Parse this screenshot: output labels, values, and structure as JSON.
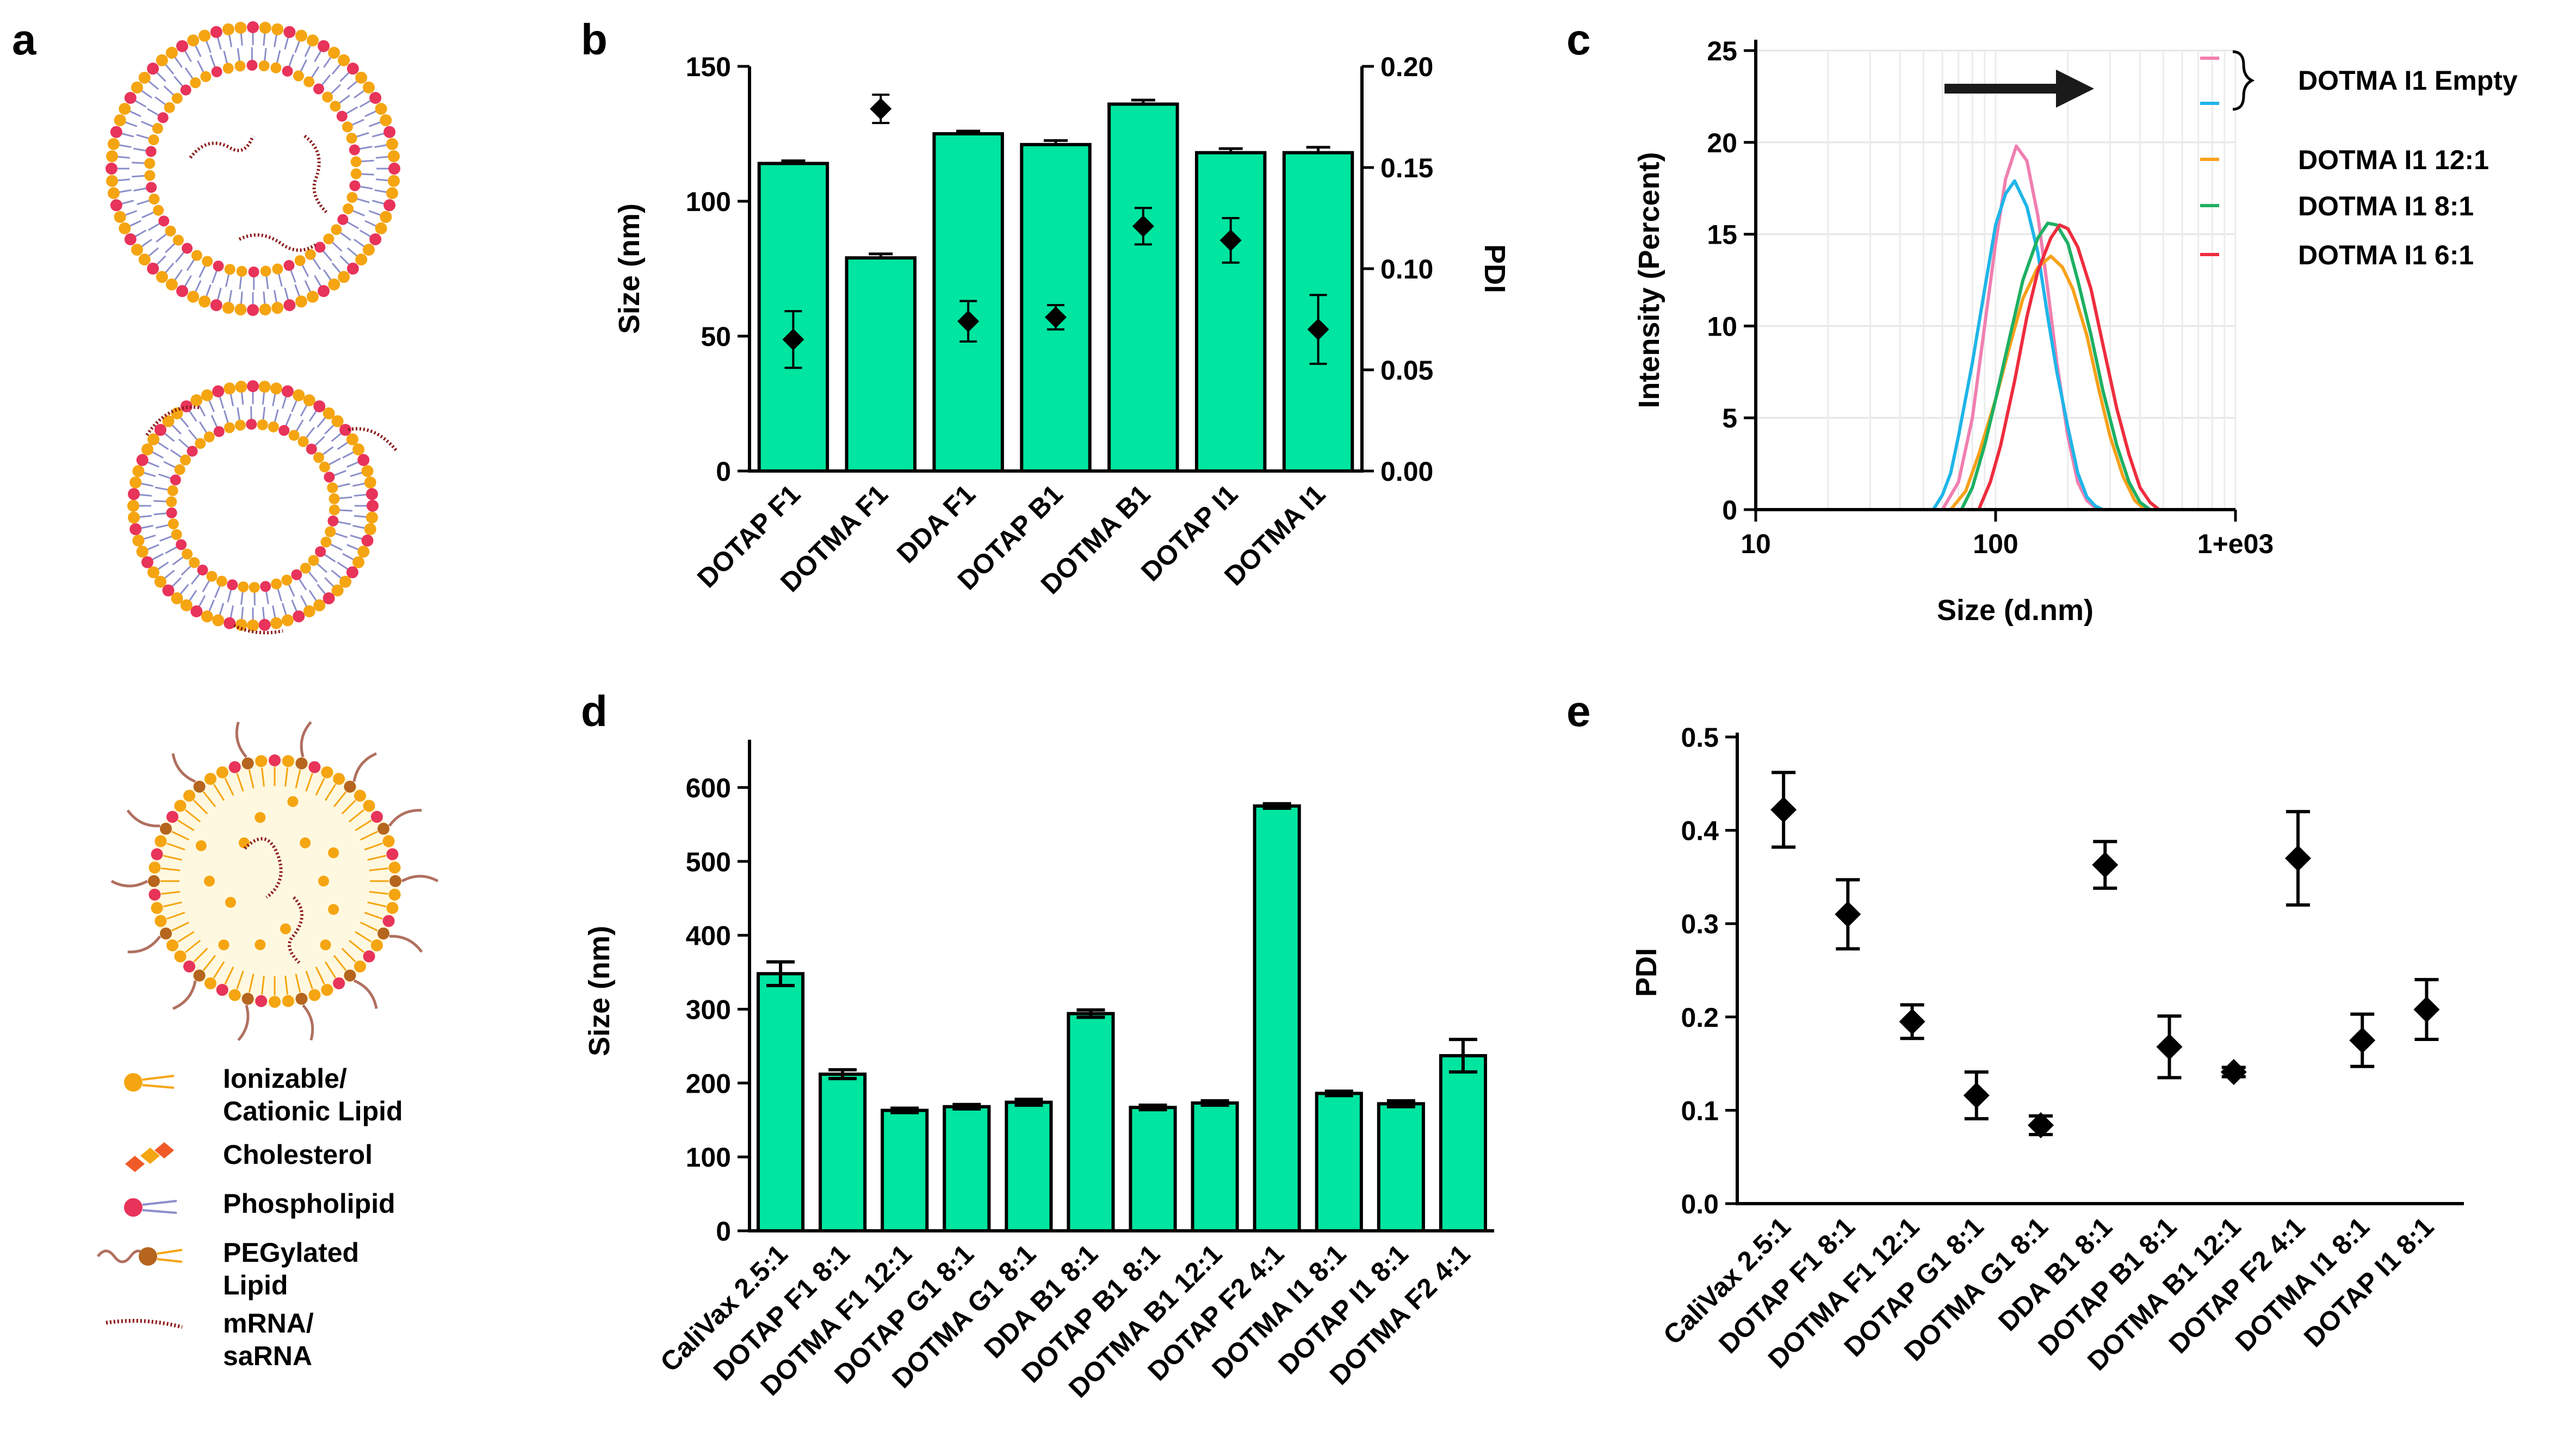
{
  "panels": {
    "a": "a",
    "b": "b",
    "c": "c",
    "d": "d",
    "e": "e"
  },
  "legend_a": {
    "items": [
      {
        "label": "Ionizable/\nCationic Lipid",
        "icon": "ionizable-lipid-icon"
      },
      {
        "label": "Cholesterol",
        "icon": "cholesterol-icon"
      },
      {
        "label": "Phospholipid",
        "icon": "phospholipid-icon"
      },
      {
        "label": "PEGylated\nLipid",
        "icon": "pegylated-lipid-icon"
      },
      {
        "label": "mRNA/\nsaRNA",
        "icon": "mrna-icon"
      }
    ]
  },
  "colors": {
    "bar": "#00E5A0",
    "lipid_head": "#F5A511",
    "phospho_head": "#E8335A",
    "cholesterol": "#F05A28",
    "tail": "#8C8FC9",
    "rna": "#8B1A1A",
    "peg": "#B07060",
    "peg_head": "#B5651D",
    "core": "#FFF8E0"
  },
  "chart_data": [
    {
      "id": "b",
      "type": "bar",
      "categories": [
        "DOTAP F1",
        "DOTMA F1",
        "DDA F1",
        "DOTAP B1",
        "DOTMA B1",
        "DOTAP I1",
        "DOTMA I1"
      ],
      "series": [
        {
          "name": "Size (nm)",
          "axis": "left",
          "values": [
            114,
            79,
            125,
            121,
            136,
            118,
            118
          ],
          "errors": [
            1,
            1.5,
            1,
            1.5,
            1.5,
            1.5,
            2
          ]
        },
        {
          "name": "PDI",
          "axis": "right",
          "type": "scatter",
          "values": [
            0.065,
            0.179,
            0.074,
            0.076,
            0.121,
            0.114,
            0.07
          ],
          "errors": [
            0.014,
            0.007,
            0.01,
            0.006,
            0.009,
            0.011,
            0.017
          ]
        }
      ],
      "ylabel": "Size (nm)",
      "y2label": "PDI",
      "ylim": [
        0,
        150
      ],
      "y2lim": [
        0,
        0.2
      ],
      "yticks": [
        "0",
        "50",
        "100",
        "150"
      ],
      "y2ticks": [
        "0.00",
        "0.05",
        "0.10",
        "0.15",
        "0.20"
      ]
    },
    {
      "id": "c",
      "type": "line",
      "xscale": "log",
      "xlabel": "Size (d.nm)",
      "ylabel": "Intensity (Percent)",
      "xlim": [
        10,
        1000
      ],
      "ylim": [
        0,
        25
      ],
      "xticks": [
        "10",
        "100",
        "1+e03"
      ],
      "yticks": [
        "0",
        "5",
        "10",
        "15",
        "20",
        "25"
      ],
      "grid": true,
      "legend_group_label": "DOTMA I1 Empty",
      "series": [
        {
          "name": "DOTMA I1 Empty",
          "color": "#F07FB0",
          "x": [
            60,
            70,
            80,
            90,
            100,
            110,
            122,
            135,
            150,
            165,
            180,
            200,
            220,
            240,
            260,
            280
          ],
          "y": [
            0,
            1.5,
            5,
            10,
            14.5,
            18,
            19.8,
            19,
            16,
            12,
            8,
            4,
            1.5,
            0.5,
            0.1,
            0
          ]
        },
        {
          "name": "DOTMA I1 Empty",
          "color": "#1FB5E8",
          "x": [
            55,
            60,
            65,
            70,
            80,
            90,
            100,
            110,
            120,
            135,
            150,
            165,
            180,
            200,
            220,
            240,
            260,
            280
          ],
          "y": [
            0,
            0.8,
            2,
            4,
            8,
            12,
            15.5,
            17.2,
            17.9,
            16.5,
            14,
            10.5,
            7.5,
            4.5,
            2,
            0.7,
            0.2,
            0
          ]
        },
        {
          "name": "DOTMA I1 12:1",
          "color": "#F7A11A",
          "x": [
            65,
            75,
            85,
            100,
            115,
            130,
            150,
            170,
            190,
            210,
            240,
            270,
            300,
            340,
            380,
            420
          ],
          "y": [
            0,
            1,
            3,
            6,
            9,
            11.5,
            13.2,
            13.8,
            13.2,
            12,
            9.5,
            6.5,
            4,
            1.8,
            0.5,
            0
          ]
        },
        {
          "name": "DOTMA I1 8:1",
          "color": "#1DB063",
          "x": [
            72,
            80,
            90,
            100,
            115,
            130,
            150,
            165,
            180,
            200,
            220,
            250,
            280,
            320,
            360,
            400,
            440
          ],
          "y": [
            0,
            1.2,
            3.5,
            6,
            9.5,
            12.5,
            14.8,
            15.6,
            15.5,
            14.5,
            12.5,
            9.5,
            6.5,
            3.5,
            1.5,
            0.4,
            0
          ]
        },
        {
          "name": "DOTMA I1 6:1",
          "color": "#EE2D3E",
          "x": [
            85,
            95,
            105,
            120,
            135,
            150,
            170,
            185,
            200,
            220,
            250,
            280,
            320,
            360,
            400,
            440,
            480
          ],
          "y": [
            0,
            1.5,
            3.5,
            7,
            10.5,
            13,
            14.8,
            15.5,
            15.3,
            14.3,
            12,
            9,
            5.5,
            3,
            1.2,
            0.4,
            0
          ]
        }
      ],
      "legend": [
        "DOTMA I1 12:1",
        "DOTMA I1 8:1",
        "DOTMA I1 6:1"
      ]
    },
    {
      "id": "d",
      "type": "bar",
      "categories": [
        "CaliVax 2.5:1",
        "DOTAP F1 8:1",
        "DOTMA F1 12:1",
        "DOTAP G1 8:1",
        "DOTMA G1 8:1",
        "DDA B1 8:1",
        "DOTAP B1 8:1",
        "DOTMA B1 12:1",
        "DOTAP F2 4:1",
        "DOTMA I1 8:1",
        "DOTAP I1 8:1",
        "DOTMA F2 4:1"
      ],
      "values": [
        348,
        212,
        163,
        168,
        174,
        294,
        167,
        173,
        575,
        186,
        172,
        237
      ],
      "errors": [
        16,
        6,
        3,
        3,
        4,
        5,
        3,
        3,
        3,
        3,
        4,
        22
      ],
      "ylabel": "Size (nm)",
      "ylim": [
        0,
        650
      ],
      "yticks": [
        "0",
        "100",
        "200",
        "300",
        "400",
        "500",
        "600"
      ]
    },
    {
      "id": "e",
      "type": "scatter",
      "categories": [
        "CaliVax 2.5:1",
        "DOTAP F1 8:1",
        "DOTMA F1 12:1",
        "DOTAP G1 8:1",
        "DOTMA G1 8:1",
        "DDA B1 8:1",
        "DOTAP B1 8:1",
        "DOTMA B1 12:1",
        "DOTAP F2 4:1",
        "DOTMA I1 8:1",
        "DOTAP I1 8:1"
      ],
      "values": [
        0.422,
        0.31,
        0.195,
        0.116,
        0.084,
        0.363,
        0.168,
        0.141,
        0.37,
        0.175,
        0.208
      ],
      "errors": [
        0.04,
        0.037,
        0.018,
        0.025,
        0.01,
        0.025,
        0.033,
        0.005,
        0.05,
        0.028,
        0.032
      ],
      "ylabel": "PDI",
      "ylim": [
        0,
        0.5
      ],
      "yticks": [
        "0.0",
        "0.1",
        "0.2",
        "0.3",
        "0.4",
        "0.5"
      ]
    }
  ]
}
